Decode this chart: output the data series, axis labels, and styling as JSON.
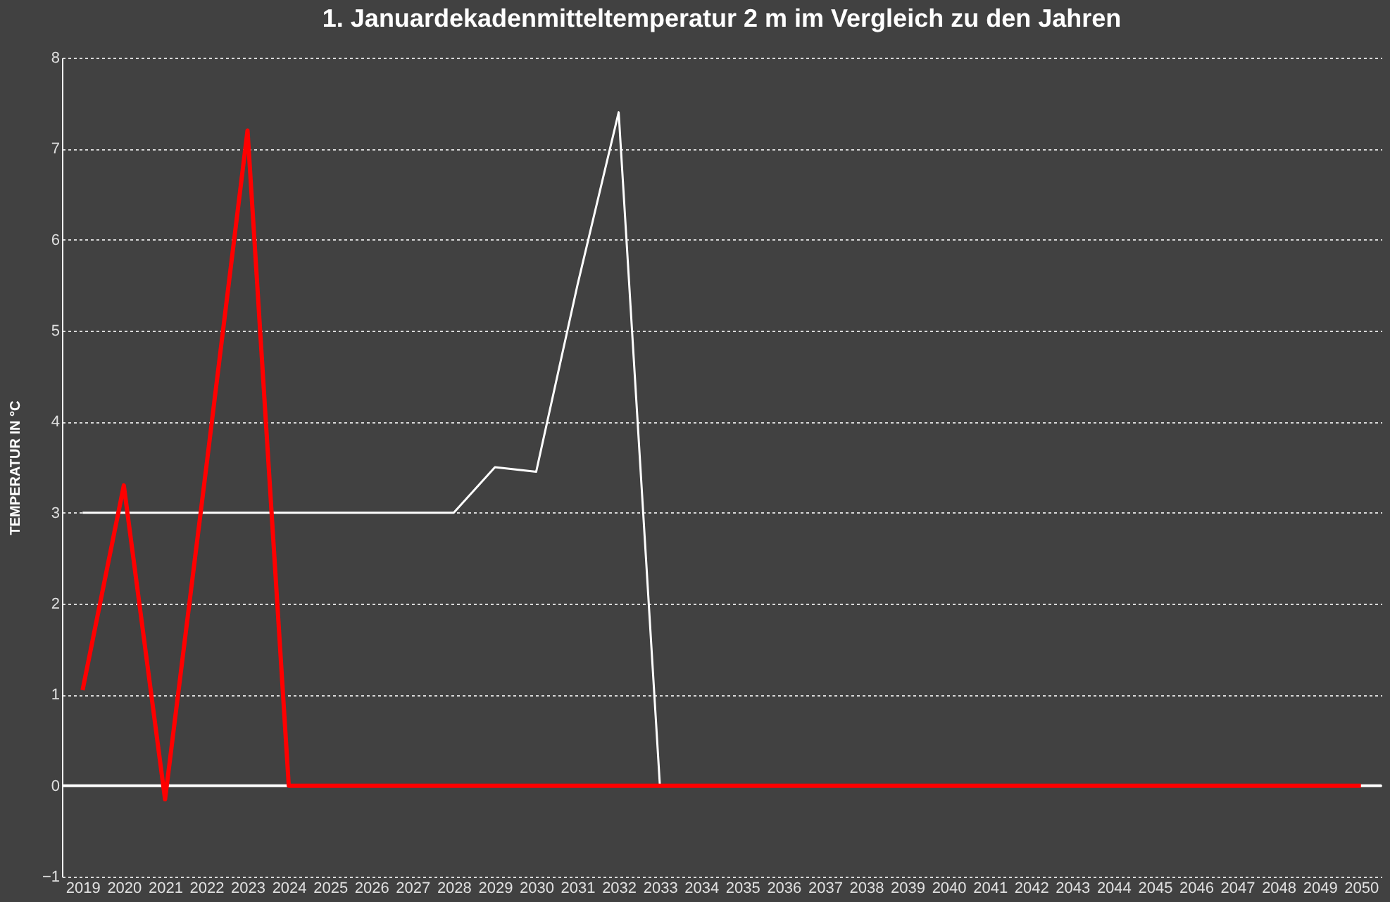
{
  "chart_data": {
    "type": "line",
    "title": "1. Januardekadenmitteltemperatur   2 m im Vergleich zu den Jahren",
    "ylabel": "TEMPERATUR IN °C",
    "categories": [
      "2019",
      "2020",
      "2021",
      "2022",
      "2023",
      "2024",
      "2025",
      "2026",
      "2027",
      "2028",
      "2029",
      "2030",
      "2031",
      "2032",
      "2033",
      "2034",
      "2035",
      "2036",
      "2037",
      "2038",
      "2039",
      "2040",
      "2041",
      "2042",
      "2043",
      "2044",
      "2045",
      "2046",
      "2047",
      "2048",
      "2049",
      "2050"
    ],
    "series": [
      {
        "color": "#ffffff",
        "values": [
          3,
          3,
          3,
          3,
          3,
          3,
          3,
          3,
          3,
          3,
          3.5,
          3.45,
          5.5,
          7.4,
          0,
          0,
          null,
          null,
          null,
          null,
          null,
          null,
          null,
          null,
          null,
          null,
          null,
          null,
          null,
          null,
          null,
          null
        ]
      },
      {
        "color": "#ff0000",
        "values": [
          1.05,
          3.3,
          -0.15,
          3.5,
          7.2,
          0,
          0,
          0,
          0,
          0,
          0,
          0,
          0,
          0,
          0,
          0,
          0,
          0,
          0,
          0,
          0,
          0,
          0,
          0,
          0,
          0,
          0,
          0,
          0,
          0,
          0,
          0
        ]
      }
    ],
    "ref_lines": [
      {
        "axis": "y",
        "value": 0,
        "color": "#ffffff"
      }
    ],
    "ylim": [
      -1,
      8
    ],
    "yticks": [
      -1,
      0,
      1,
      2,
      3,
      4,
      5,
      6,
      7,
      8
    ],
    "grid": "y"
  }
}
